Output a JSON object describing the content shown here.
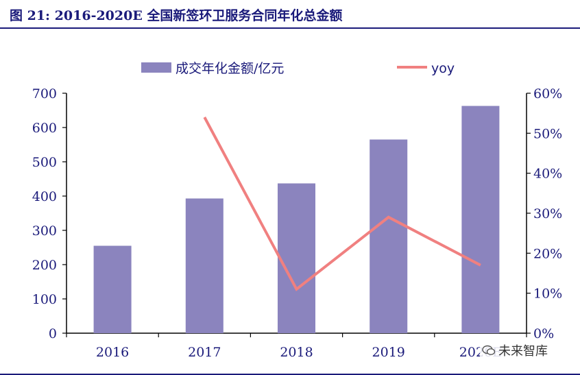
{
  "title": "图 21: 2016-2020E 全国新签环卫服务合同年化总金额",
  "watermark": "未来智库",
  "colors": {
    "bar": "#8b84be",
    "line": "#f08080",
    "axis": "#1a1a7a"
  },
  "chart_data": {
    "type": "bar",
    "categories": [
      "2016",
      "2017",
      "2018",
      "2019",
      "2020E"
    ],
    "series": [
      {
        "name": "成交年化金额/亿元",
        "type": "bar",
        "axis": "left",
        "values": [
          255,
          393,
          437,
          565,
          663
        ]
      },
      {
        "name": "yoy",
        "type": "line",
        "axis": "right",
        "values": [
          null,
          0.54,
          0.11,
          0.29,
          0.17
        ]
      }
    ],
    "y_left": {
      "lim": [
        0,
        700
      ],
      "ticks": [
        "0",
        "100",
        "200",
        "300",
        "400",
        "500",
        "600",
        "700"
      ]
    },
    "y_right": {
      "lim": [
        0,
        0.6
      ],
      "ticks": [
        "0%",
        "10%",
        "20%",
        "30%",
        "40%",
        "50%",
        "60%"
      ]
    },
    "legend_position": "top"
  }
}
